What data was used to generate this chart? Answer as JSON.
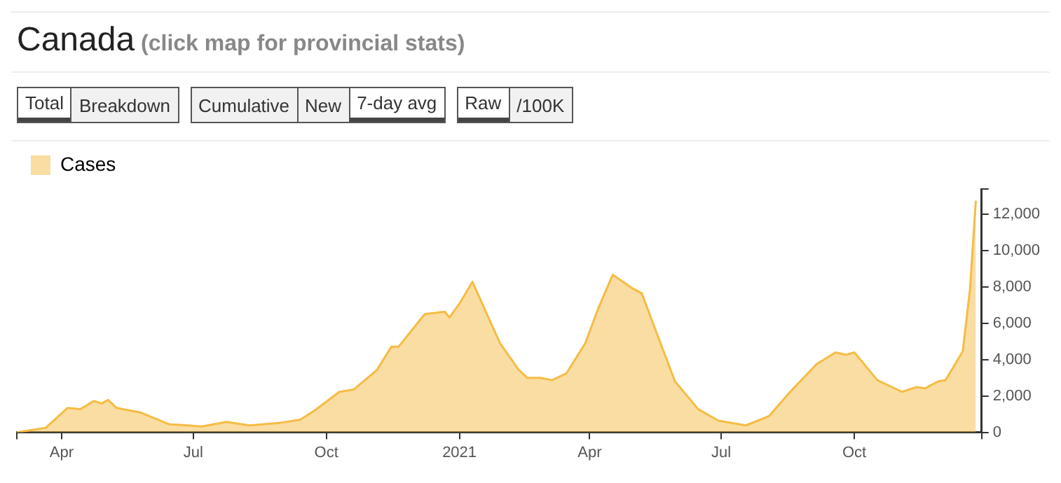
{
  "chart_data": {
    "type": "area",
    "title": "Canada",
    "subtitle": "(click map for provincial stats)",
    "annotations": [
      "Total",
      "Breakdown",
      "Cumulative",
      "New",
      "7-day avg",
      "Raw",
      "/100K"
    ],
    "legend": "top left",
    "xlim": [
      "2020-03-01",
      "2021-12-28"
    ],
    "xticks": [
      {
        "value": "2020-03-01",
        "label": null
      },
      {
        "value": "2020-04-01",
        "label": "Apr"
      },
      {
        "value": "2020-07-01",
        "label": "Jul"
      },
      {
        "value": "2020-10-01",
        "label": "Oct"
      },
      {
        "value": "2021-01-01",
        "label": "2021"
      },
      {
        "value": "2021-04-01",
        "label": "Apr"
      },
      {
        "value": "2021-07-01",
        "label": "Jul"
      },
      {
        "value": "2021-10-01",
        "label": "Oct"
      },
      {
        "value": "2021-12-28",
        "label": null
      }
    ],
    "ylim": [
      0,
      13400
    ],
    "yticks": [
      0,
      {
        "value": 2000,
        "label": "2,000"
      },
      {
        "value": 4000,
        "label": "4,000"
      },
      {
        "value": 6000,
        "label": "6,000"
      },
      {
        "value": 8000,
        "label": "8,000"
      },
      {
        "value": 10000,
        "label": "10,000"
      },
      {
        "value": 12000,
        "label": "12,000"
      },
      {
        "value": 13400,
        "label": null
      }
    ],
    "x": [
      "2020-03-01",
      "2020-03-21",
      "2020-04-05",
      "2020-04-14",
      "2020-04-23",
      "2020-04-29",
      "2020-05-03",
      "2020-05-09",
      "2020-05-26",
      "2020-06-14",
      "2020-07-07",
      "2020-07-24",
      "2020-08-09",
      "2020-08-29",
      "2020-09-13",
      "2020-09-23",
      "2020-10-10",
      "2020-10-20",
      "2020-11-05",
      "2020-11-15",
      "2020-11-20",
      "2020-12-08",
      "2020-12-22",
      "2020-12-25",
      "2021-01-01",
      "2021-01-10",
      "2021-01-29",
      "2021-02-11",
      "2021-02-17",
      "2021-02-26",
      "2021-03-06",
      "2021-03-16",
      "2021-03-29",
      "2021-04-07",
      "2021-04-17",
      "2021-05-01",
      "2021-05-07",
      "2021-05-20",
      "2021-05-30",
      "2021-06-15",
      "2021-06-29",
      "2021-07-18",
      "2021-08-03",
      "2021-08-17",
      "2021-09-05",
      "2021-09-18",
      "2021-09-25",
      "2021-10-01",
      "2021-10-17",
      "2021-11-03",
      "2021-11-13",
      "2021-11-19",
      "2021-11-28",
      "2021-12-03",
      "2021-12-15",
      "2021-12-20",
      "2021-12-24"
    ],
    "series": [
      {
        "name": "Cases",
        "color": "#f5bc45",
        "values": [
          0,
          250,
          1340,
          1280,
          1720,
          1600,
          1790,
          1340,
          1080,
          450,
          320,
          570,
          380,
          510,
          700,
          1210,
          2230,
          2360,
          3440,
          4720,
          4720,
          6510,
          6640,
          6320,
          7080,
          8290,
          4910,
          3440,
          3000,
          3000,
          2870,
          3250,
          4910,
          6830,
          8680,
          7910,
          7660,
          4910,
          2810,
          1280,
          640,
          380,
          890,
          2170,
          3760,
          4400,
          4270,
          4400,
          2870,
          2230,
          2490,
          2420,
          2810,
          2870,
          4470,
          7910,
          12760
        ]
      }
    ]
  }
}
